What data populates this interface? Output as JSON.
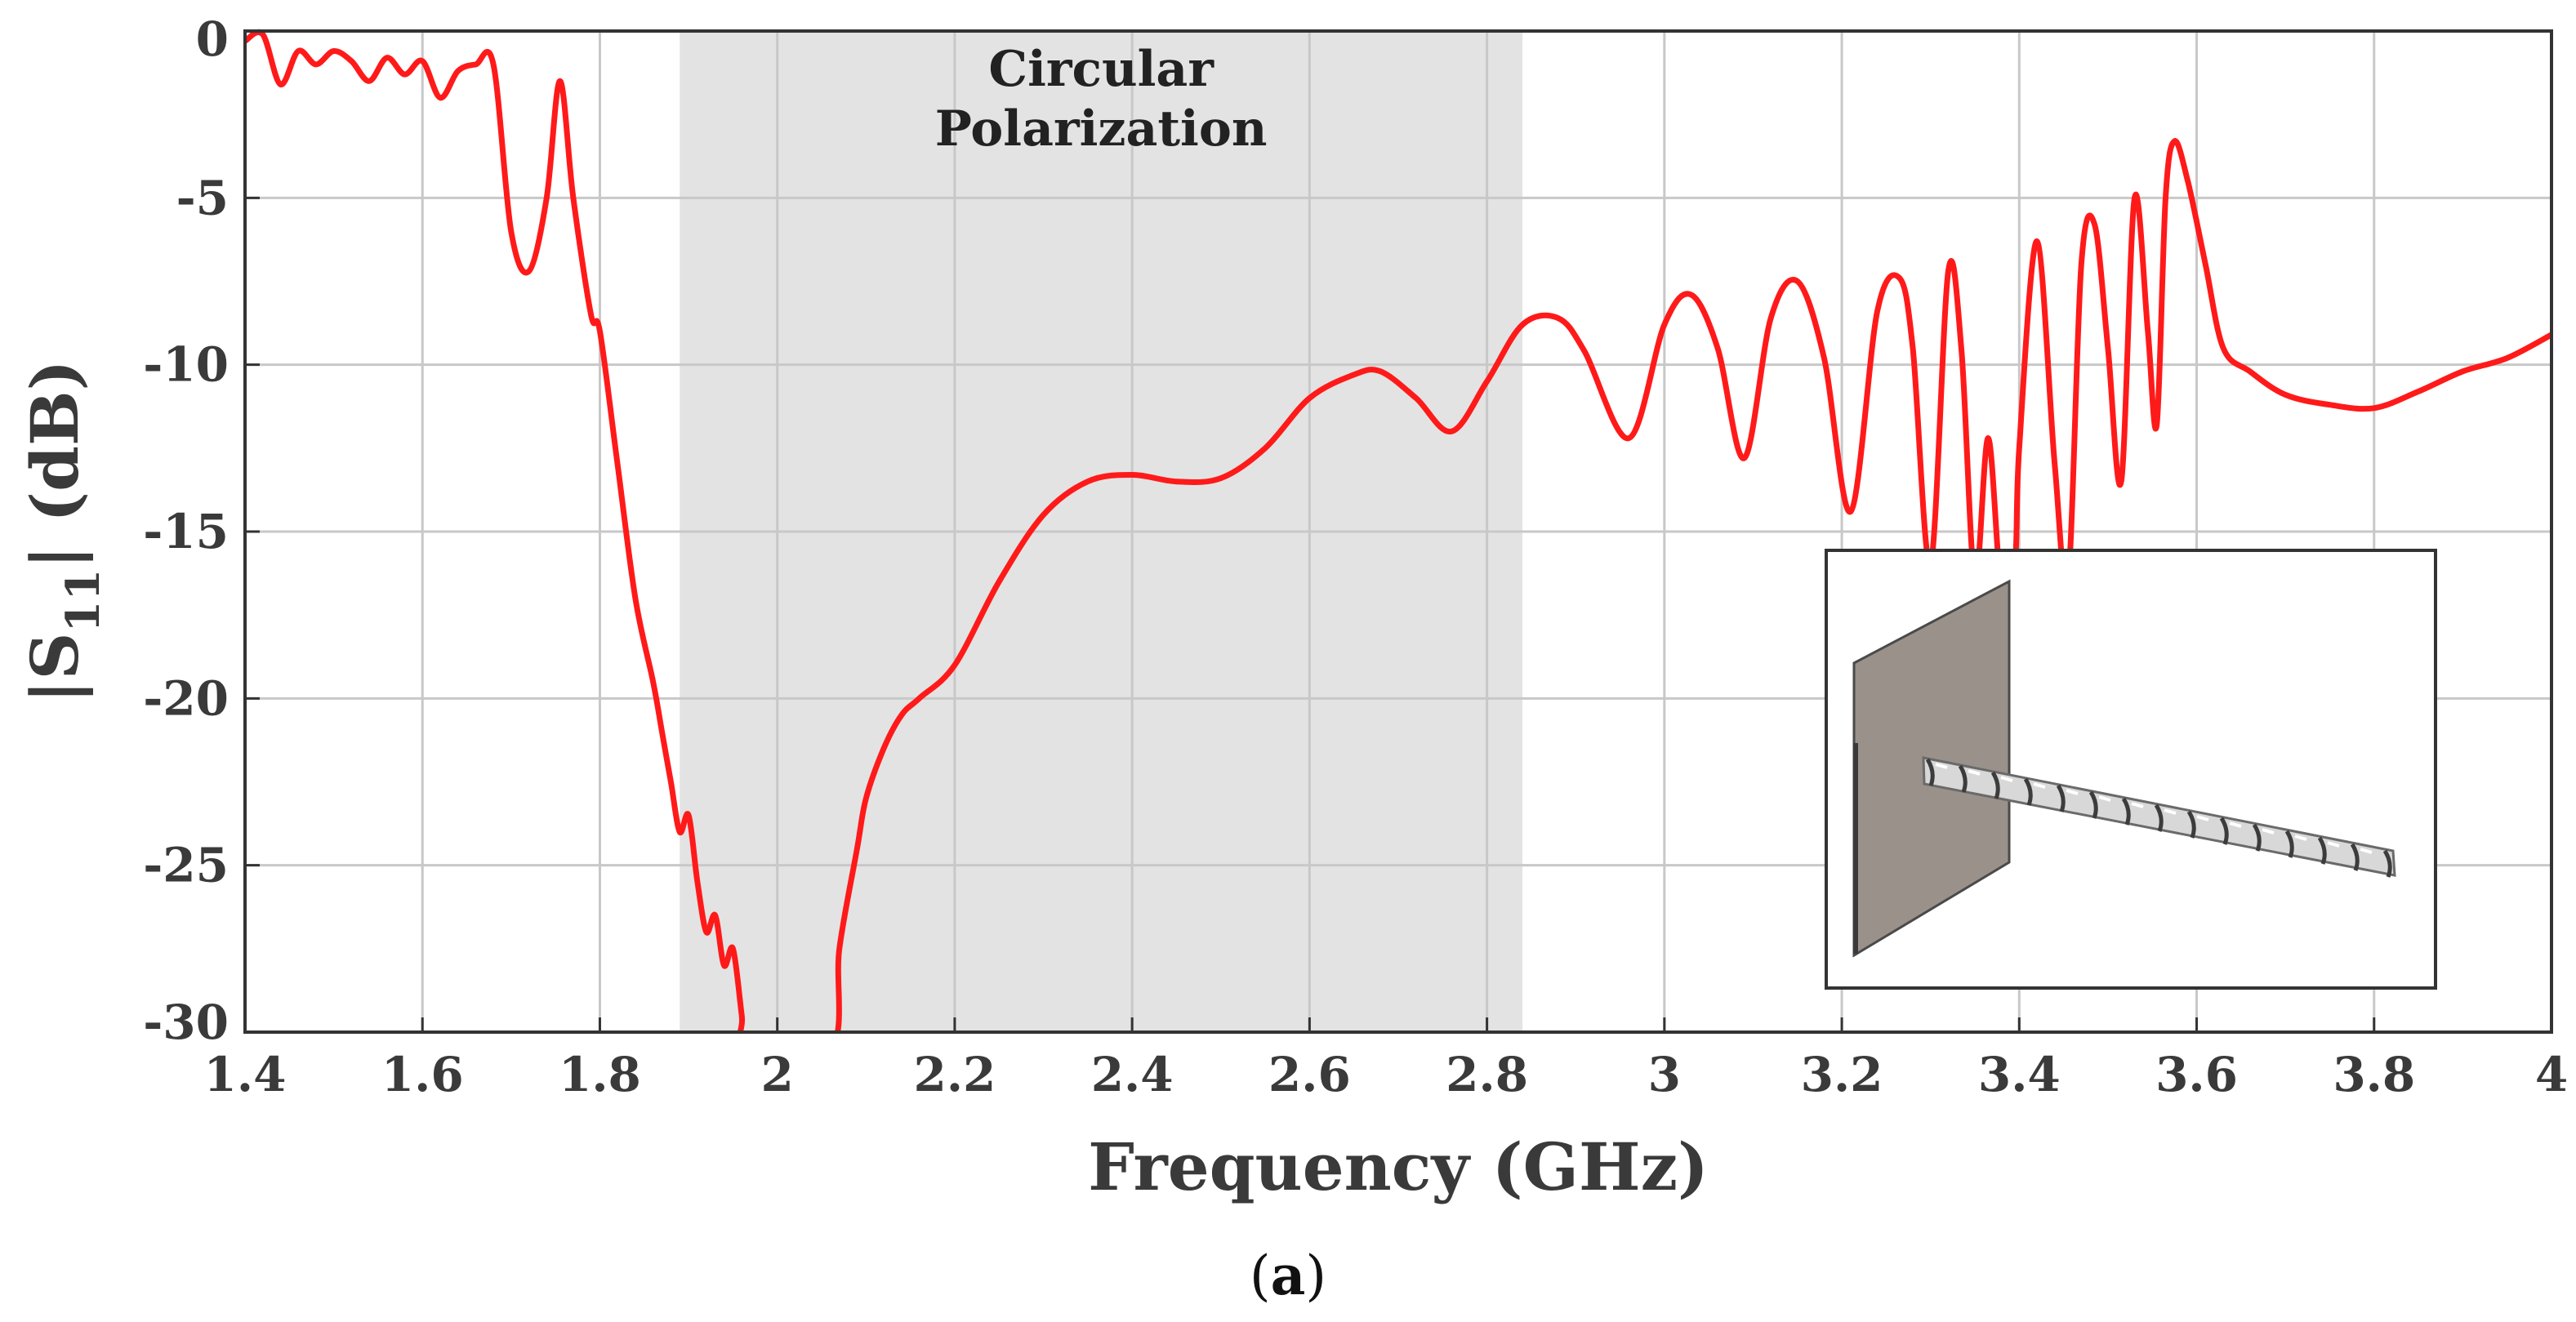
{
  "chart_data": {
    "type": "line",
    "xlabel": "Frequency (GHz)",
    "ylabel_parts": {
      "pre": "|S",
      "sub": "11",
      "post": "| (dB)"
    },
    "xlim": [
      1.4,
      4.0
    ],
    "ylim": [
      -30,
      0
    ],
    "xticks": [
      1.4,
      1.6,
      1.8,
      2.0,
      2.2,
      2.4,
      2.6,
      2.8,
      3.0,
      3.2,
      3.4,
      3.6,
      3.8,
      4.0
    ],
    "xtick_labels": [
      "1.4",
      "1.6",
      "1.8",
      "2",
      "2.2",
      "2.4",
      "2.6",
      "2.8",
      "3",
      "3.2",
      "3.4",
      "3.6",
      "3.8",
      "4"
    ],
    "yticks": [
      0,
      -5,
      -10,
      -15,
      -20,
      -25,
      -30
    ],
    "ytick_labels": [
      "0",
      "-5",
      "-10",
      "-15",
      "-20",
      "-25",
      "-30"
    ],
    "grid": true,
    "line_color": "#ff1a1a",
    "shade_color": "#e3e3e3",
    "shaded_region": {
      "x_range": [
        1.89,
        2.84
      ],
      "label_lines": [
        "Circular",
        "Polarization"
      ]
    },
    "caption_parts": {
      "open": "(",
      "letter": "a",
      "close": ")"
    },
    "inset_description": "helical antenna model with ground plane",
    "series": [
      {
        "name": "|S11|",
        "x": [
          1.4,
          1.42,
          1.44,
          1.46,
          1.48,
          1.5,
          1.52,
          1.54,
          1.56,
          1.58,
          1.6,
          1.62,
          1.64,
          1.66,
          1.68,
          1.7,
          1.72,
          1.74,
          1.755,
          1.77,
          1.79,
          1.8,
          1.82,
          1.84,
          1.86,
          1.87,
          1.88,
          1.89,
          1.9,
          1.91,
          1.92,
          1.93,
          1.94,
          1.95,
          1.96,
          1.965,
          2.06,
          2.07,
          2.09,
          2.1,
          2.12,
          2.14,
          2.16,
          2.2,
          2.25,
          2.3,
          2.35,
          2.4,
          2.45,
          2.5,
          2.55,
          2.6,
          2.65,
          2.68,
          2.72,
          2.76,
          2.8,
          2.84,
          2.88,
          2.91,
          2.96,
          3.0,
          3.03,
          3.06,
          3.09,
          3.12,
          3.15,
          3.18,
          3.21,
          3.24,
          3.265,
          3.28,
          3.3,
          3.32,
          3.335,
          3.35,
          3.365,
          3.38,
          3.395,
          3.4,
          3.42,
          3.44,
          3.455,
          3.47,
          3.485,
          3.5,
          3.515,
          3.53,
          3.545,
          3.555,
          3.565,
          3.575,
          3.59,
          3.61,
          3.63,
          3.66,
          3.7,
          3.75,
          3.8,
          3.85,
          3.9,
          3.95,
          4.0
        ],
        "y": [
          -0.3,
          -0.1,
          -1.6,
          -0.6,
          -1.0,
          -0.6,
          -0.9,
          -1.5,
          -0.8,
          -1.3,
          -0.9,
          -2.0,
          -1.2,
          -1.0,
          -1.0,
          -6.0,
          -7.2,
          -5.0,
          -1.5,
          -5.0,
          -8.5,
          -9.0,
          -13.0,
          -17.0,
          -19.5,
          -21.0,
          -22.5,
          -24.0,
          -23.5,
          -25.5,
          -27.0,
          -26.5,
          -28.0,
          -27.5,
          -29.5,
          -30.5,
          -30.5,
          -27.5,
          -24.5,
          -23.0,
          -21.5,
          -20.5,
          -20.0,
          -19.0,
          -16.5,
          -14.5,
          -13.5,
          -13.3,
          -13.5,
          -13.4,
          -12.5,
          -11.0,
          -10.3,
          -10.2,
          -11.0,
          -12.0,
          -10.5,
          -8.8,
          -8.6,
          -9.6,
          -12.2,
          -8.8,
          -7.9,
          -9.5,
          -12.8,
          -8.6,
          -7.5,
          -9.8,
          -14.4,
          -8.4,
          -7.4,
          -9.5,
          -16.0,
          -7.2,
          -9.6,
          -16.5,
          -12.2,
          -16.8,
          -16.0,
          -12.5,
          -6.3,
          -13.0,
          -16.5,
          -7.0,
          -5.8,
          -9.5,
          -13.5,
          -5.0,
          -9.0,
          -11.8,
          -5.0,
          -3.3,
          -4.5,
          -7.0,
          -9.5,
          -10.2,
          -10.9,
          -11.2,
          -11.3,
          -10.8,
          -10.2,
          -9.8,
          -9.1
        ]
      }
    ]
  }
}
